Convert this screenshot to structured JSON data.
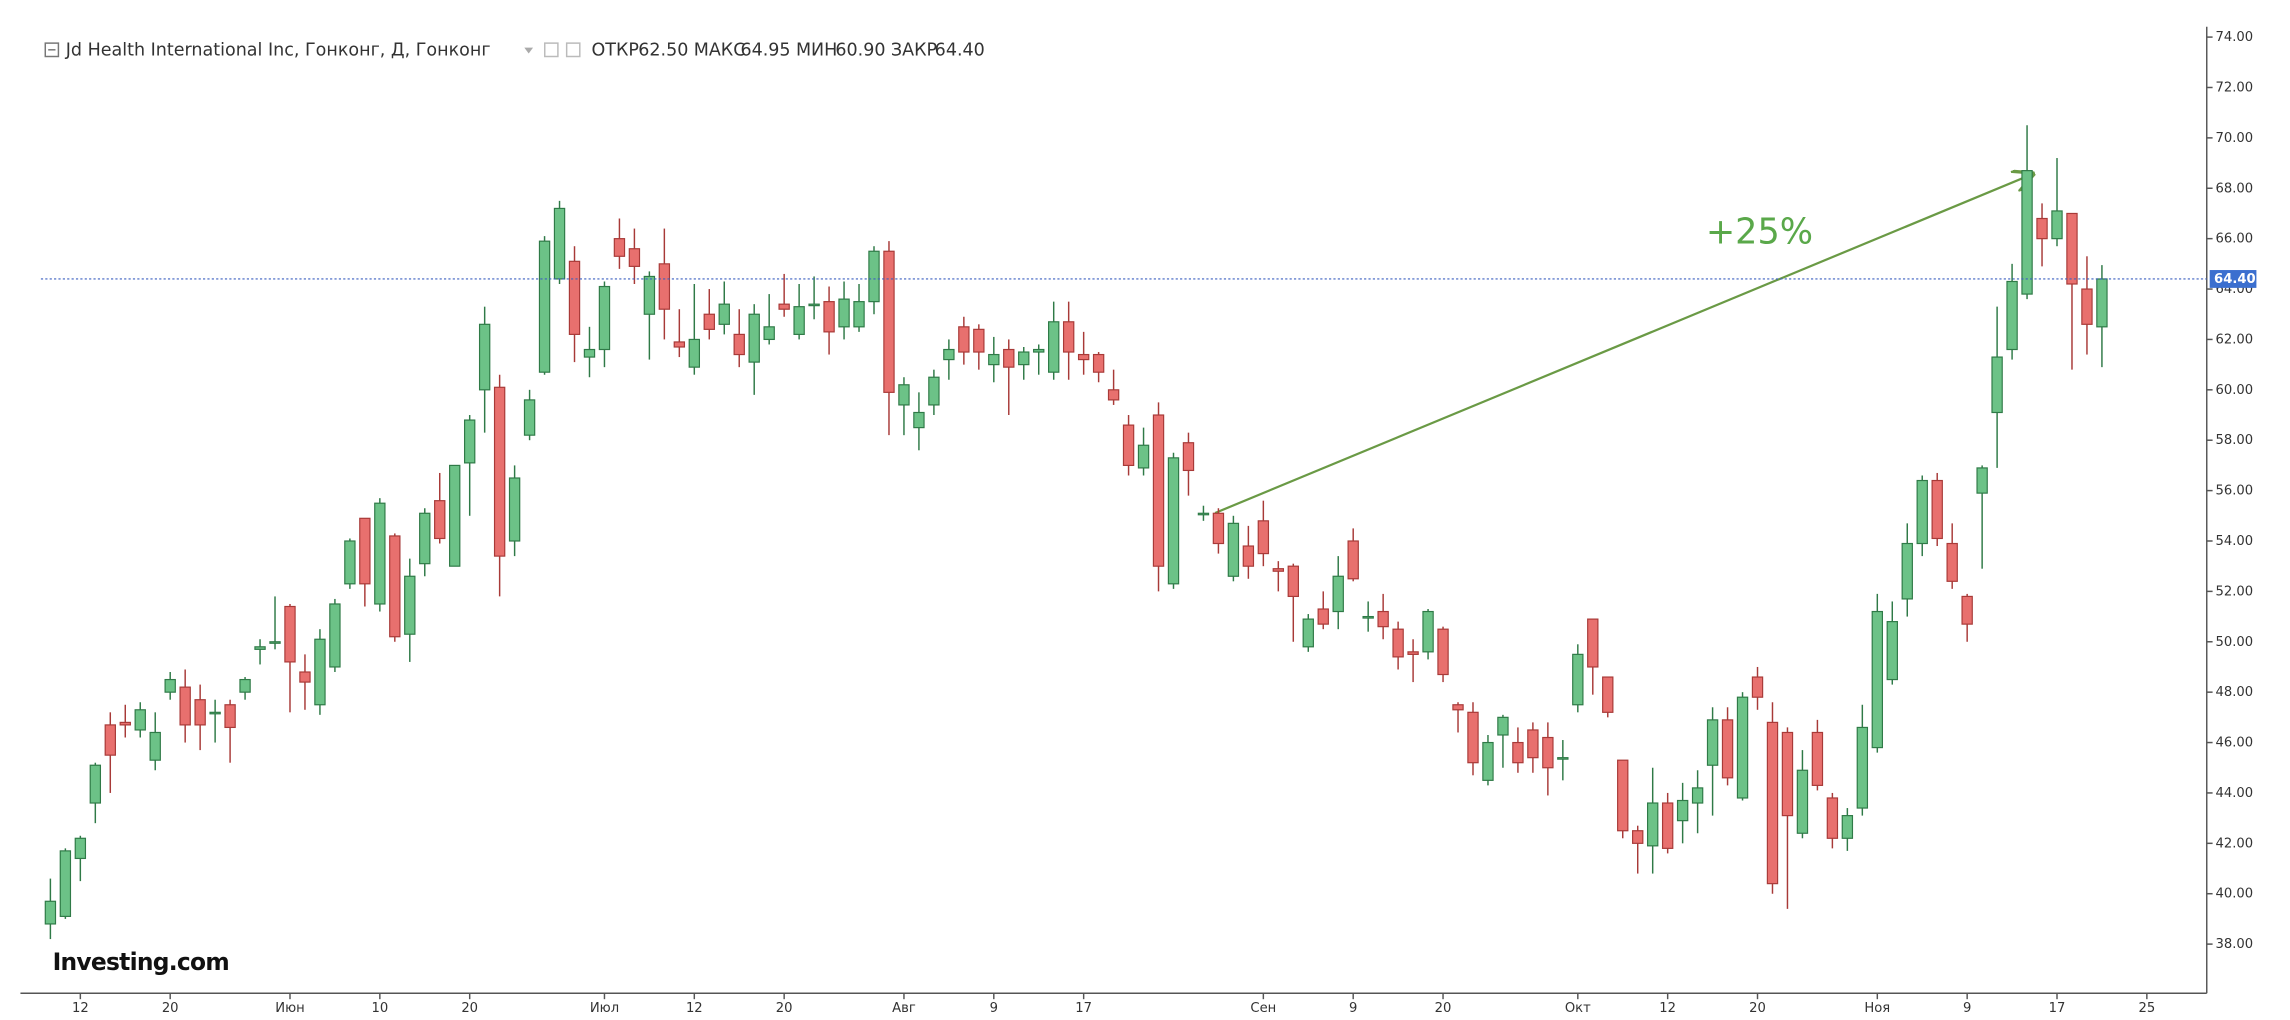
{
  "header": {
    "title": "Jd Health International Inc, Гонконг, Д, Гонконг",
    "quotes": [
      {
        "label": "ОТКР",
        "value": "62.50"
      },
      {
        "label": "МАКС",
        "value": "64.95"
      },
      {
        "label": "МИН",
        "value": "60.90"
      },
      {
        "label": "ЗАКР",
        "value": "64.40"
      }
    ]
  },
  "logo": "Investing.com",
  "chart_data": {
    "type": "candlestick",
    "annotation": "+25%",
    "up_color": "#6cc287",
    "up_border": "#2f7a47",
    "down_color": "#e8706e",
    "down_border": "#a83a38",
    "last_price": {
      "value": 64.4,
      "label": "64.40"
    },
    "xlim": [
      -2,
      144
    ],
    "ylim": [
      36.05,
      74.41
    ],
    "xticks": [
      {
        "value": 2,
        "label": "12"
      },
      {
        "value": 8,
        "label": "20"
      },
      {
        "value": 16,
        "label": "Июн"
      },
      {
        "value": 22,
        "label": "10"
      },
      {
        "value": 28,
        "label": "20"
      },
      {
        "value": 37,
        "label": "Июл"
      },
      {
        "value": 43,
        "label": "12"
      },
      {
        "value": 49,
        "label": "20"
      },
      {
        "value": 57,
        "label": "Авг"
      },
      {
        "value": 63,
        "label": "9"
      },
      {
        "value": 69,
        "label": "17"
      },
      {
        "value": 81,
        "label": "Сен"
      },
      {
        "value": 87,
        "label": "9"
      },
      {
        "value": 93,
        "label": "20"
      },
      {
        "value": 102,
        "label": "Окт"
      },
      {
        "value": 108,
        "label": "12"
      },
      {
        "value": 114,
        "label": "20"
      },
      {
        "value": 122,
        "label": "Ноя"
      },
      {
        "value": 128,
        "label": "9"
      },
      {
        "value": 134,
        "label": "17"
      },
      {
        "value": 140,
        "label": "25"
      }
    ],
    "yticks": [
      {
        "value": 38,
        "label": "38.00"
      },
      {
        "value": 40,
        "label": "40.00"
      },
      {
        "value": 42,
        "label": "42.00"
      },
      {
        "value": 44,
        "label": "44.00"
      },
      {
        "value": 46,
        "label": "46.00"
      },
      {
        "value": 48,
        "label": "48.00"
      },
      {
        "value": 50,
        "label": "50.00"
      },
      {
        "value": 52,
        "label": "52.00"
      },
      {
        "value": 54,
        "label": "54.00"
      },
      {
        "value": 56,
        "label": "56.00"
      },
      {
        "value": 58,
        "label": "58.00"
      },
      {
        "value": 60,
        "label": "60.00"
      },
      {
        "value": 62,
        "label": "62.00"
      },
      {
        "value": 64,
        "label": "64.00"
      },
      {
        "value": 66,
        "label": "66.00"
      },
      {
        "value": 68,
        "label": "68.00"
      },
      {
        "value": 70,
        "label": "70.00"
      },
      {
        "value": 72,
        "label": "72.00"
      },
      {
        "value": 74,
        "label": "74.00"
      }
    ],
    "open": [
      38.8,
      39.1,
      41.4,
      43.6,
      46.7,
      46.8,
      46.5,
      45.3,
      48.0,
      48.2,
      47.7,
      47.2,
      47.5,
      48.0,
      49.7,
      50.0,
      51.4,
      48.8,
      47.5,
      49.0,
      52.3,
      54.9,
      51.5,
      54.2,
      50.3,
      53.1,
      55.6,
      53.0,
      57.1,
      60.0,
      60.1,
      54.0,
      58.2,
      60.7,
      64.4,
      65.1,
      61.3,
      61.6,
      66.0,
      65.6,
      63.0,
      65.0,
      61.9,
      60.9,
      63.0,
      62.6,
      62.2,
      61.1,
      62.0,
      63.4,
      62.2,
      63.4,
      63.5,
      62.5,
      62.5,
      63.5,
      65.5,
      59.4,
      58.5,
      59.4,
      61.2,
      62.5,
      62.4,
      61.0,
      61.6,
      61.0,
      61.5,
      60.7,
      62.7,
      61.4,
      61.4,
      60.0,
      58.6,
      56.9,
      59.0,
      52.3,
      57.9,
      55.1,
      55.1,
      52.6,
      53.8,
      54.8,
      52.9,
      53.0,
      49.8,
      51.3,
      51.2,
      54.0,
      51.0,
      51.2,
      50.5,
      49.6,
      49.6,
      50.5,
      47.5,
      47.2,
      44.5,
      46.3,
      46.0,
      46.5,
      46.2,
      45.4,
      47.5,
      50.9,
      48.6,
      45.3,
      42.5,
      41.9,
      43.6,
      42.9,
      43.6,
      45.1,
      46.9,
      43.8,
      48.6,
      46.8,
      46.4,
      42.4,
      46.4,
      43.8,
      42.2,
      43.4,
      45.8,
      48.5,
      51.7,
      53.9,
      56.4,
      53.9,
      51.8,
      55.9,
      59.1,
      61.6,
      63.8,
      66.8,
      66.0,
      67.0,
      64.0,
      62.5
    ],
    "high": [
      40.6,
      41.8,
      42.3,
      45.2,
      47.2,
      47.5,
      47.6,
      47.2,
      48.8,
      48.9,
      48.3,
      47.7,
      47.7,
      48.6,
      50.1,
      51.8,
      51.5,
      49.5,
      50.5,
      51.7,
      54.1,
      54.9,
      55.7,
      54.3,
      53.3,
      55.3,
      56.7,
      57.0,
      59.0,
      63.3,
      60.6,
      57.0,
      60.0,
      66.1,
      67.5,
      65.7,
      62.5,
      64.3,
      66.8,
      66.4,
      64.7,
      66.4,
      63.2,
      64.2,
      64.0,
      64.3,
      63.2,
      63.4,
      63.8,
      64.6,
      64.2,
      64.5,
      64.1,
      64.3,
      64.2,
      65.7,
      65.9,
      60.5,
      59.9,
      60.8,
      62.0,
      62.9,
      62.6,
      62.1,
      62.0,
      61.7,
      61.8,
      63.5,
      63.5,
      62.3,
      61.5,
      60.8,
      59.0,
      58.5,
      59.5,
      57.5,
      58.3,
      55.4,
      55.3,
      55.0,
      54.6,
      55.6,
      53.2,
      53.1,
      51.1,
      52.0,
      53.4,
      54.5,
      51.6,
      51.9,
      50.8,
      50.1,
      51.3,
      50.6,
      47.6,
      47.6,
      46.3,
      47.1,
      46.6,
      46.8,
      46.8,
      46.1,
      49.9,
      50.9,
      48.6,
      45.3,
      42.7,
      45.0,
      44.0,
      44.4,
      44.9,
      47.4,
      47.4,
      48.0,
      49.0,
      47.6,
      46.6,
      45.7,
      46.9,
      44.0,
      43.4,
      47.5,
      51.9,
      51.6,
      54.7,
      56.6,
      56.7,
      54.7,
      51.9,
      57.0,
      63.3,
      65.0,
      70.5,
      67.4,
      69.2,
      67.0,
      65.3,
      64.95
    ],
    "low": [
      38.2,
      39.0,
      40.5,
      42.8,
      44.0,
      46.2,
      46.2,
      44.9,
      47.7,
      46.0,
      45.7,
      46.0,
      45.2,
      47.7,
      49.1,
      49.7,
      47.2,
      47.3,
      47.1,
      48.8,
      52.1,
      51.4,
      51.2,
      50.0,
      49.2,
      52.6,
      53.9,
      53.0,
      55.0,
      58.3,
      51.8,
      53.4,
      58.0,
      60.6,
      64.2,
      61.1,
      60.5,
      60.9,
      64.8,
      64.2,
      61.2,
      62.0,
      61.3,
      60.6,
      62.0,
      62.2,
      60.9,
      59.8,
      61.8,
      62.9,
      62.0,
      62.8,
      61.4,
      62.0,
      62.3,
      63.0,
      58.2,
      58.2,
      57.6,
      59.0,
      60.4,
      61.0,
      60.8,
      60.3,
      59.0,
      60.4,
      60.6,
      60.4,
      60.4,
      60.6,
      60.3,
      59.4,
      56.6,
      56.6,
      52.0,
      52.1,
      55.8,
      54.8,
      53.5,
      52.4,
      52.5,
      53.0,
      52.0,
      50.0,
      49.6,
      50.5,
      50.5,
      52.4,
      50.4,
      50.1,
      48.9,
      48.4,
      49.3,
      48.4,
      46.4,
      44.7,
      44.3,
      45.0,
      44.8,
      44.8,
      43.9,
      44.5,
      47.2,
      47.9,
      47.0,
      42.2,
      40.8,
      40.8,
      41.6,
      42.0,
      42.4,
      43.1,
      44.3,
      43.7,
      47.3,
      40.0,
      39.4,
      42.2,
      44.1,
      41.8,
      41.7,
      43.1,
      45.6,
      48.3,
      51.0,
      53.4,
      53.8,
      52.1,
      50.0,
      52.9,
      56.9,
      61.2,
      63.6,
      64.9,
      65.7,
      60.8,
      61.4,
      60.9
    ],
    "close": [
      39.7,
      41.7,
      42.2,
      45.1,
      45.5,
      46.7,
      47.3,
      46.4,
      48.5,
      46.7,
      46.7,
      47.2,
      46.6,
      48.5,
      49.8,
      50.0,
      49.2,
      48.4,
      50.1,
      51.5,
      54.0,
      52.3,
      55.5,
      50.2,
      52.6,
      55.1,
      54.1,
      57.0,
      58.8,
      62.6,
      53.4,
      56.5,
      59.6,
      65.9,
      67.2,
      62.2,
      61.6,
      64.1,
      65.3,
      64.9,
      64.5,
      63.2,
      61.7,
      62.0,
      62.4,
      63.4,
      61.4,
      63.0,
      62.5,
      63.2,
      63.3,
      63.4,
      62.3,
      63.6,
      63.5,
      65.5,
      59.9,
      60.2,
      59.1,
      60.5,
      61.6,
      61.5,
      61.5,
      61.4,
      60.9,
      61.5,
      61.6,
      62.7,
      61.5,
      61.2,
      60.7,
      59.6,
      57.0,
      57.8,
      53.0,
      57.3,
      56.8,
      55.1,
      53.9,
      54.7,
      53.0,
      53.5,
      52.8,
      51.8,
      50.9,
      50.7,
      52.6,
      52.5,
      51.0,
      50.6,
      49.4,
      49.5,
      51.2,
      48.7,
      47.3,
      45.2,
      46.0,
      47.0,
      45.2,
      45.4,
      45.0,
      45.4,
      49.5,
      49.0,
      47.2,
      42.5,
      42.0,
      43.6,
      41.8,
      43.7,
      44.2,
      46.9,
      44.6,
      47.8,
      47.8,
      40.4,
      43.1,
      44.9,
      44.3,
      42.2,
      43.1,
      46.6,
      51.2,
      50.8,
      53.9,
      56.4,
      54.1,
      52.4,
      50.7,
      56.9,
      61.3,
      64.3,
      68.7,
      66.0,
      67.1,
      64.2,
      62.6,
      64.4
    ]
  }
}
